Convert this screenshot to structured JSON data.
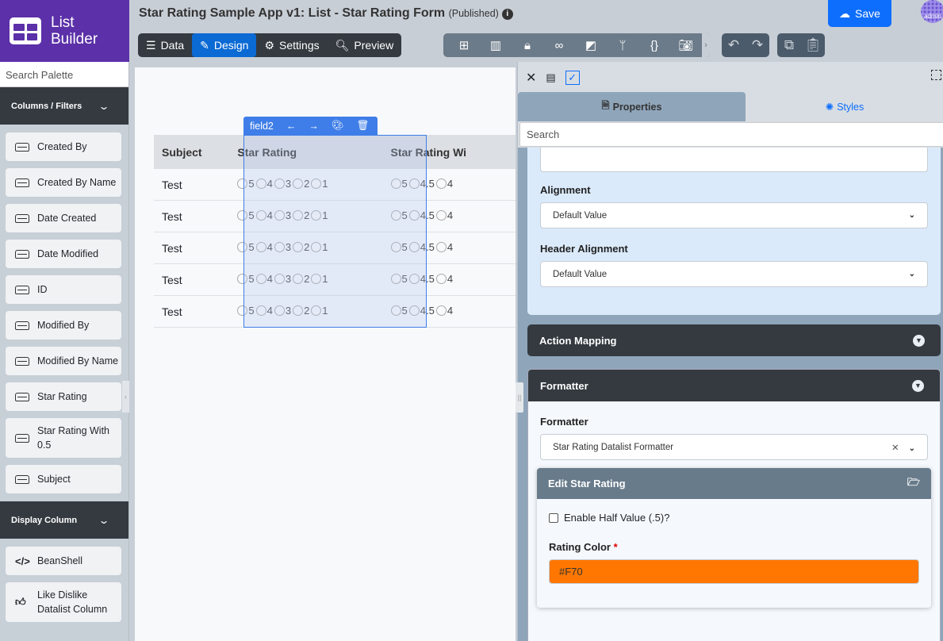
{
  "brand": {
    "line1": "List",
    "line2": "Builder"
  },
  "sidebar": {
    "search_placeholder": "Search Palette",
    "sections": [
      {
        "label": "Columns / Filters",
        "items": [
          "Created By",
          "Created By Name",
          "Date Created",
          "Date Modified",
          "ID",
          "Modified By",
          "Modified By Name",
          "Star Rating",
          "Star Rating With 0.5",
          "Subject"
        ]
      },
      {
        "label": "Display Column",
        "items": [
          "BeanShell",
          "Like Dislike Datalist Column"
        ]
      }
    ]
  },
  "header": {
    "title": "Star Rating Sample App v1: List - Star Rating Form",
    "status": "(Published)",
    "save_label": "Save",
    "avatar_text": "admin",
    "modes": [
      {
        "label": "Data",
        "icon": "table-icon"
      },
      {
        "label": "Design",
        "icon": "design-icon",
        "active": true
      },
      {
        "label": "Settings",
        "icon": "gear-icon"
      },
      {
        "label": "Preview",
        "icon": "preview-icon"
      }
    ],
    "tools": [
      "sitemap-icon",
      "form-icon",
      "lock-icon",
      "binoculars-icon",
      "translate-icon",
      "branch-icon",
      "code-braces-icon",
      "camera-icon"
    ]
  },
  "table": {
    "headers": [
      "Subject",
      "Star Rating",
      "Star Rating Wi"
    ],
    "rows": [
      {
        "subject": "Test"
      },
      {
        "subject": "Test"
      },
      {
        "subject": "Test"
      },
      {
        "subject": "Test"
      },
      {
        "subject": "Test"
      }
    ],
    "rating_options": [
      "5",
      "4",
      "3",
      "2",
      "1"
    ],
    "half_options": [
      "5",
      "4.5",
      "4"
    ]
  },
  "selection": {
    "tag": "field2"
  },
  "panel": {
    "tabs": {
      "properties": "Properties",
      "styles": "Styles"
    },
    "search_placeholder": "Search",
    "alignment": {
      "label": "Alignment",
      "value": "Default Value"
    },
    "header_alignment": {
      "label": "Header Alignment",
      "value": "Default Value"
    },
    "action_mapping": "Action Mapping",
    "formatter": {
      "section": "Formatter",
      "label": "Formatter",
      "value": "Star Rating Datalist Formatter"
    },
    "edit": {
      "title": "Edit Star Rating",
      "half_label": "Enable Half Value (.5)?",
      "half_checked": false,
      "color_label": "Rating Color",
      "required": "*",
      "color_value": "#F70"
    }
  },
  "colors": {
    "brand": "#5b30a8",
    "accent": "#0d6efd",
    "rating": "#ff7700",
    "dark": "#343a40"
  }
}
